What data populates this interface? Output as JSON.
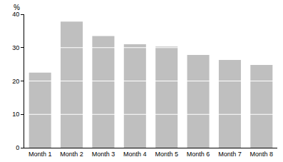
{
  "chart_data": {
    "type": "bar",
    "ylabel": "%",
    "categories": [
      "Month 1",
      "Month 2",
      "Month 3",
      "Month 4",
      "Month 5",
      "Month 6",
      "Month 7",
      "Month 8"
    ],
    "values": [
      22.5,
      37.8,
      33.5,
      31,
      30.3,
      27.8,
      26.3,
      24.8
    ],
    "color": "#bfbfbf",
    "ylim": [
      0,
      40
    ],
    "yticks": [
      0,
      10,
      20,
      30,
      40
    ],
    "grid": true
  }
}
